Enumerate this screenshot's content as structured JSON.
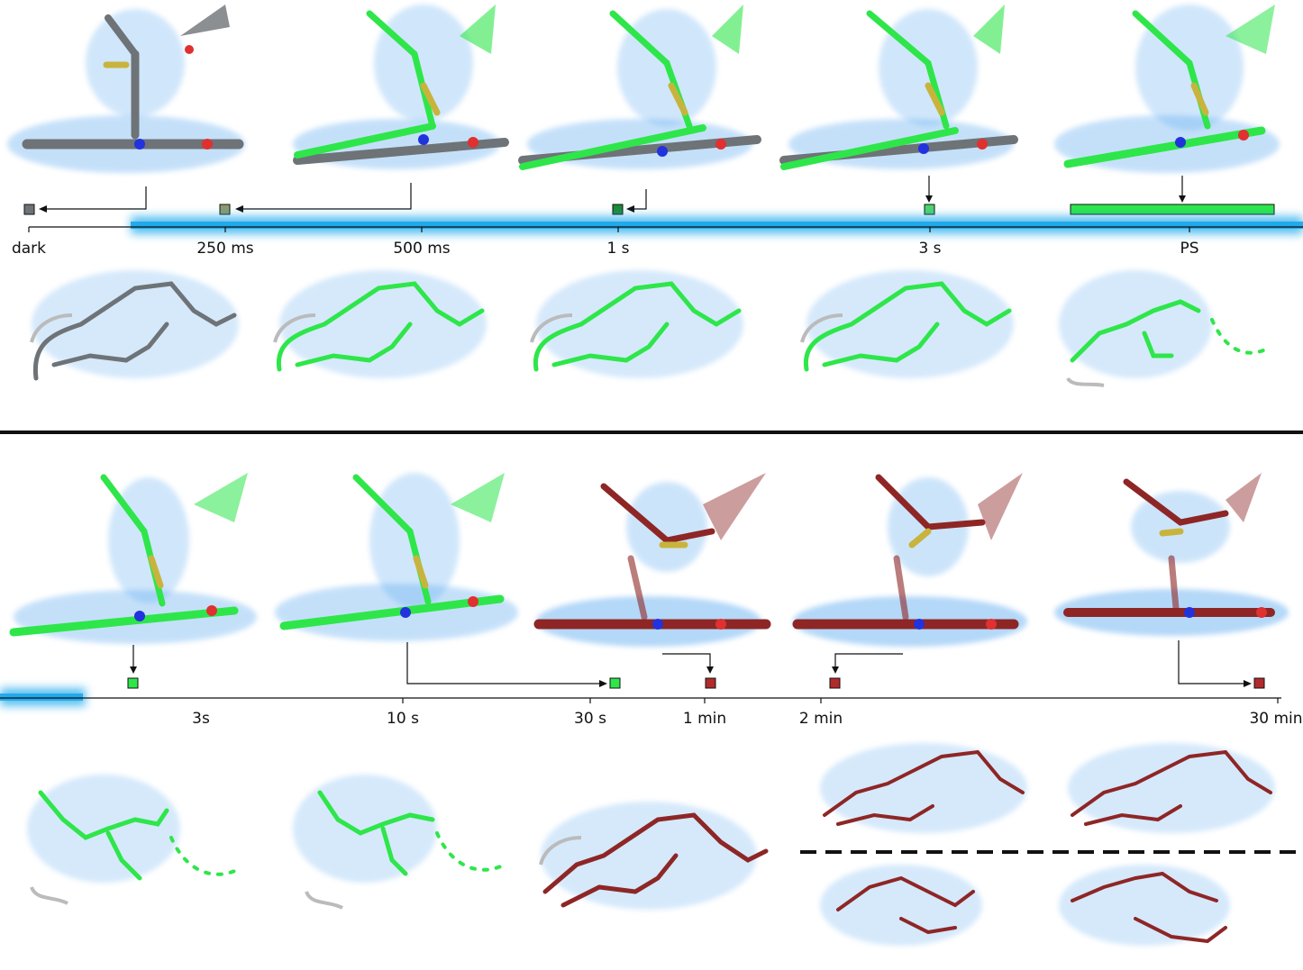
{
  "figure": {
    "top_timeline": {
      "labels": [
        "dark",
        "250 ms",
        "500 ms",
        "1 s",
        "3 s",
        "PS"
      ]
    },
    "bottom_timeline": {
      "labels": [
        "3s",
        "10 s",
        "30 s",
        "1 min",
        "2 min",
        "30 min"
      ]
    },
    "colors": {
      "dark_state": "#6e7377",
      "bright_state": "#2ee64a",
      "dark_red_state": "#8e2626",
      "density_blue": "#5aa9f0",
      "light_bar": "#19a6ea",
      "sulfur": "#c8b43c",
      "nitrogen": "#2233dd",
      "oxygen": "#e03030"
    },
    "icons": [
      "chromophore-density-icon",
      "loop-density-icon",
      "illumination-bar",
      "state-marker-square"
    ]
  }
}
